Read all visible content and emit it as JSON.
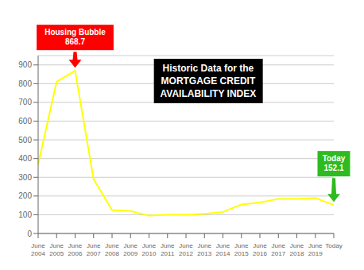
{
  "chart_data": {
    "type": "line",
    "title": "Historic Data for the\nMORTGAGE CREDIT\nAVAILABILITY INDEX",
    "categories": [
      "June\n2004",
      "June\n2005",
      "June\n2006",
      "June\n2007",
      "June\n2008",
      "June\n2009",
      "June\n2010",
      "June\n2011",
      "June\n2012",
      "June\n2013",
      "June\n2014",
      "June\n2015",
      "June\n2016",
      "June\n2017",
      "June\n2018",
      "June\n2019",
      "Today"
    ],
    "values": [
      370,
      810,
      868.7,
      290,
      125,
      120,
      95,
      100,
      100,
      105,
      115,
      155,
      165,
      185,
      185,
      190,
      152.1
    ],
    "color": "#FFFF00",
    "ylim": [
      0,
      950
    ],
    "yticks": [
      0,
      100,
      200,
      300,
      400,
      500,
      600,
      700,
      800,
      900
    ],
    "grid": true,
    "annotations": [
      {
        "text": "Housing Bubble\n868.7",
        "x": "June\n2006",
        "y": 868.7,
        "color": "red"
      },
      {
        "text": "Today\n152.1",
        "x": "Today",
        "y": 152.1,
        "color": "#2EBB20"
      }
    ]
  }
}
